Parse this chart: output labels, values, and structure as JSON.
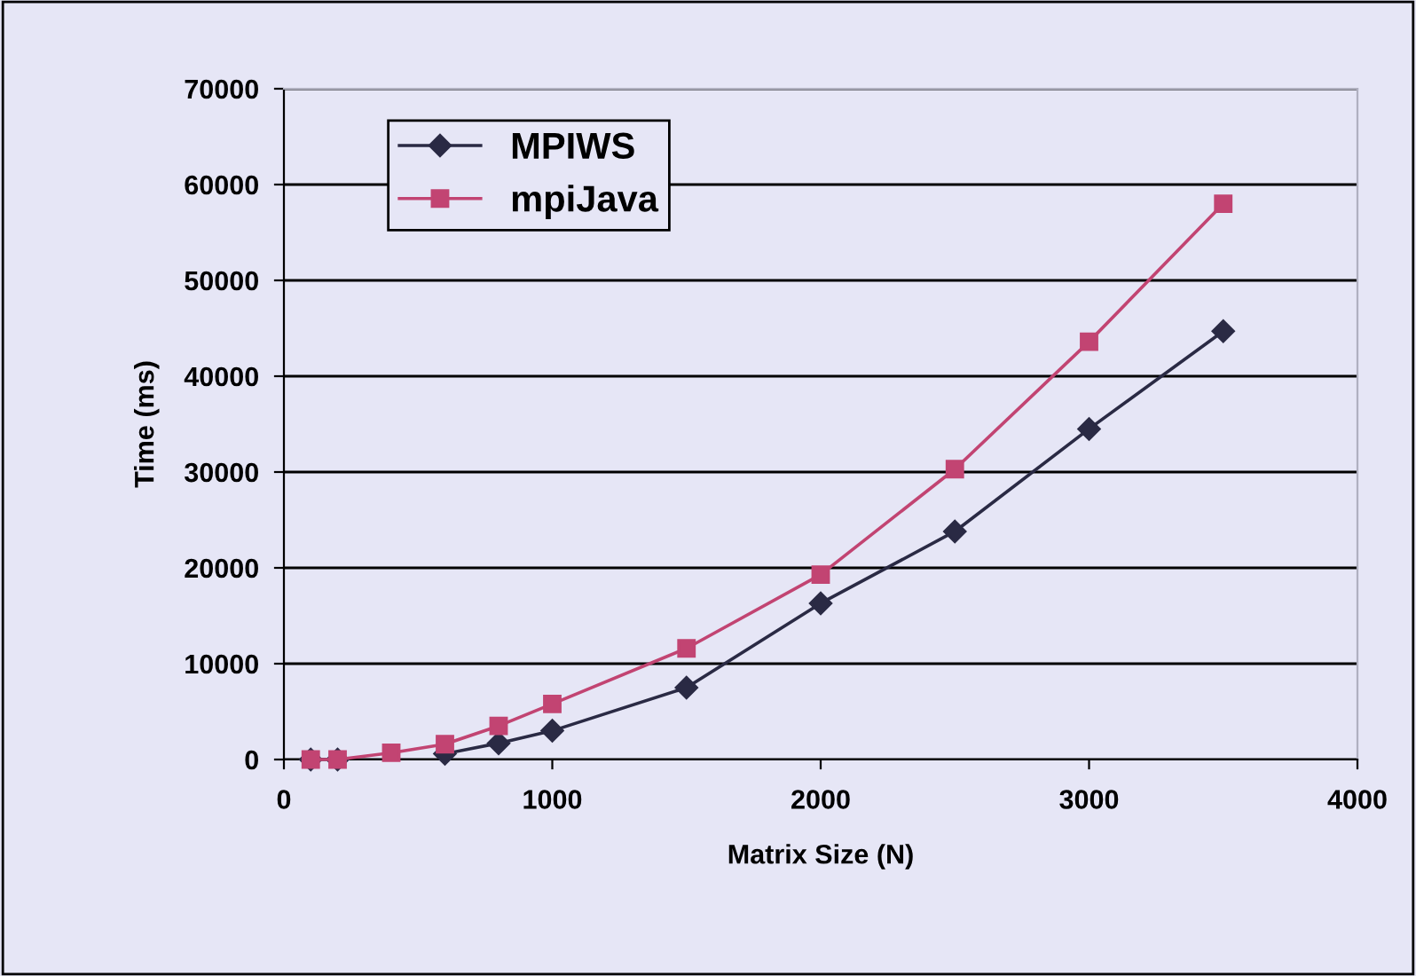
{
  "chart_data": {
    "type": "line",
    "xlabel": "Matrix Size (N)",
    "ylabel": "Time (ms)",
    "x": [
      100,
      200,
      400,
      600,
      800,
      1000,
      1500,
      2000,
      2500,
      3000,
      3500
    ],
    "series": [
      {
        "name": "MPIWS",
        "color": "#2a2a44",
        "marker": "diamond",
        "values": [
          0,
          0,
          null,
          600,
          1700,
          3000,
          7500,
          16300,
          23800,
          34500,
          44700
        ]
      },
      {
        "name": "mpiJava",
        "color": "#c24472",
        "marker": "square",
        "values": [
          0,
          0,
          700,
          1600,
          3500,
          5800,
          11600,
          19300,
          30300,
          43600,
          58000
        ]
      }
    ],
    "xlim": [
      0,
      4000
    ],
    "xticks": [
      0,
      1000,
      2000,
      3000,
      4000
    ],
    "ylim": [
      0,
      70000
    ],
    "yticks": [
      0,
      10000,
      20000,
      30000,
      40000,
      50000,
      60000,
      70000
    ],
    "grid": "y",
    "legend": "top left"
  }
}
